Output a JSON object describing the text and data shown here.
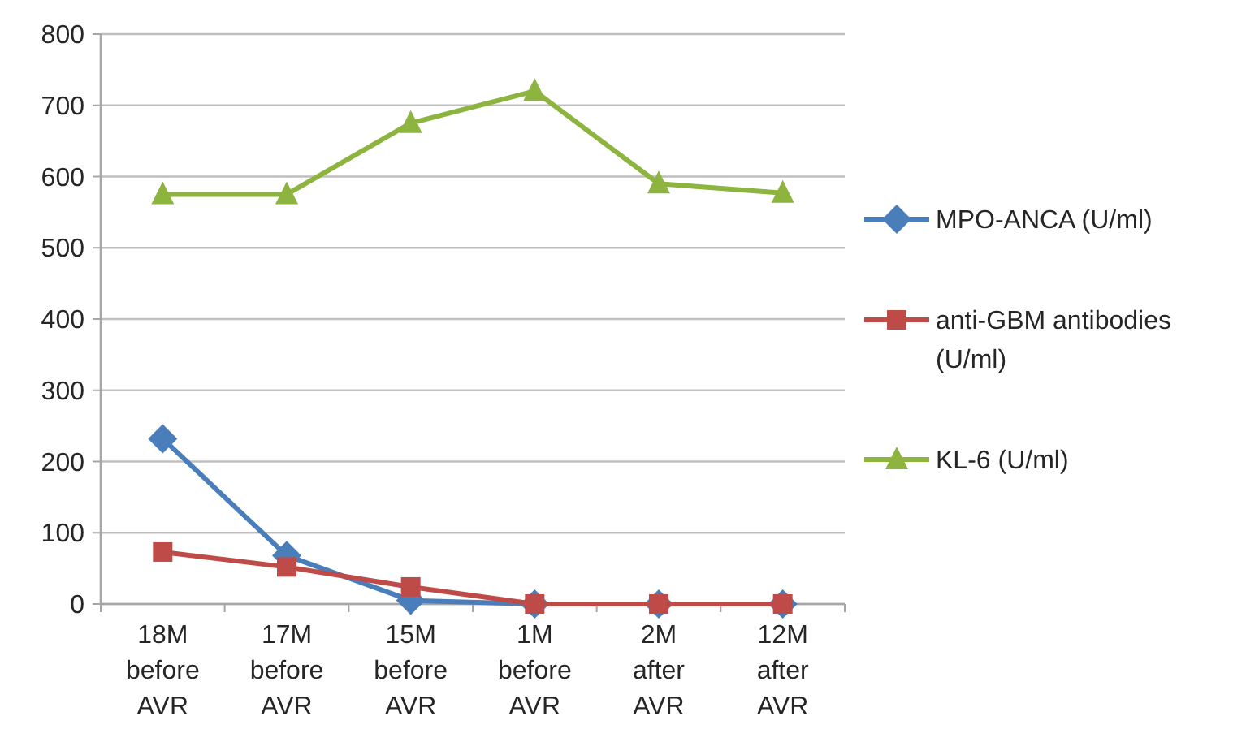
{
  "chart_data": {
    "type": "line",
    "categories": [
      "18M before AVR",
      "17M before AVR",
      "15M before AVR",
      "1M before AVR",
      "2M after AVR",
      "12M after AVR"
    ],
    "series": [
      {
        "name": "MPO-ANCA (U/ml)",
        "color": "#4a7ebb",
        "marker": "diamond",
        "values": [
          232,
          68,
          5,
          0,
          0,
          0
        ]
      },
      {
        "name": "anti-GBM antibodies (U/ml)",
        "color": "#be4b48",
        "marker": "square",
        "values": [
          73,
          52,
          24,
          0,
          0,
          0
        ]
      },
      {
        "name": "KL-6 (U/ml)",
        "color": "#8cb43f",
        "marker": "triangle",
        "values": [
          575,
          575,
          675,
          720,
          590,
          577
        ]
      }
    ],
    "ylim": [
      0,
      800
    ],
    "yticks": [
      0,
      100,
      200,
      300,
      400,
      500,
      600,
      700,
      800
    ],
    "grid": "y",
    "legend": "right",
    "line_style": "solid"
  }
}
